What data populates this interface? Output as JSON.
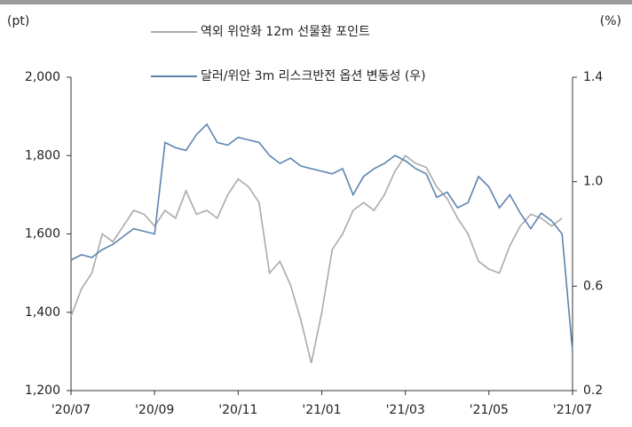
{
  "chart_data": {
    "type": "line",
    "y_label": "(pt)",
    "y2_label": "(%)",
    "categories": [
      "'20/07",
      null,
      null,
      null,
      null,
      null,
      null,
      null,
      "'20/09",
      null,
      null,
      null,
      null,
      null,
      null,
      null,
      "'20/11",
      null,
      null,
      null,
      null,
      null,
      null,
      null,
      "'21/01",
      null,
      null,
      null,
      null,
      null,
      null,
      null,
      "'21/03",
      null,
      null,
      null,
      null,
      null,
      null,
      null,
      "'21/05",
      null,
      null,
      null,
      null,
      null,
      null,
      null,
      "'21/07"
    ],
    "series": [
      {
        "name": "역외 위안화 12m 선물환 포인트",
        "color": "#aaaaaa",
        "axis": "y",
        "values": [
          1390,
          1460,
          1500,
          1600,
          1580,
          1620,
          1660,
          1650,
          1620,
          1660,
          1640,
          1710,
          1650,
          1660,
          1640,
          1700,
          1740,
          1720,
          1680,
          1500,
          1530,
          1470,
          1380,
          1270,
          1400,
          1560,
          1600,
          1660,
          1680,
          1660,
          1700,
          1760,
          1800,
          1780,
          1770,
          1720,
          1690,
          1640,
          1600,
          1530,
          1510,
          1500,
          1570,
          1620,
          1650,
          1640,
          1620,
          1640,
          null
        ]
      },
      {
        "name": "달러/위안 3m 리스크반전 옵션 변동성 (우)",
        "color": "#5b84b1",
        "axis": "y2",
        "values": [
          0.7,
          0.72,
          0.71,
          0.74,
          0.76,
          0.79,
          0.82,
          0.81,
          0.8,
          1.15,
          1.13,
          1.12,
          1.18,
          1.22,
          1.15,
          1.14,
          1.17,
          1.16,
          1.15,
          1.1,
          1.07,
          1.09,
          1.06,
          1.05,
          1.04,
          1.03,
          1.05,
          0.95,
          1.02,
          1.05,
          1.07,
          1.1,
          1.08,
          1.05,
          1.03,
          0.94,
          0.96,
          0.9,
          0.92,
          1.02,
          0.98,
          0.9,
          0.95,
          0.88,
          0.82,
          0.88,
          0.85,
          0.8,
          0.35
        ]
      }
    ],
    "ylim": [
      1200,
      2000
    ],
    "yticks": [
      {
        "value": 1200,
        "label": "1,200"
      },
      {
        "value": 1400,
        "label": "1,400"
      },
      {
        "value": 1600,
        "label": "1,600"
      },
      {
        "value": 1800,
        "label": "1,800"
      },
      {
        "value": 2000,
        "label": "2,000"
      }
    ],
    "y2lim": [
      0.2,
      1.4
    ],
    "y2ticks": [
      0.2,
      0.6,
      {
        "value": 1.0,
        "label": "1.0"
      },
      1.4
    ],
    "grid": false
  }
}
